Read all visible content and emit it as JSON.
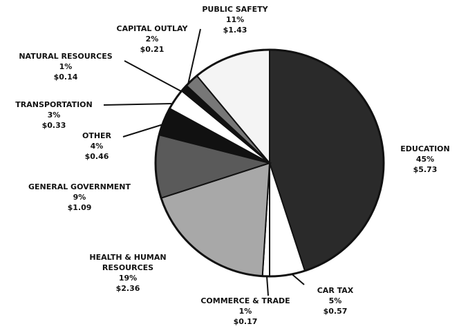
{
  "chart_data": {
    "type": "pie",
    "categories": [
      "EDUCATION",
      "CAR TAX",
      "COMMERCE & TRADE",
      "HEALTH & HUMAN RESOURCES",
      "GENERAL GOVERNMENT",
      "OTHER",
      "TRANSPORTATION",
      "NATURAL RESOURCES",
      "CAPITAL OUTLAY",
      "PUBLIC SAFETY"
    ],
    "values": [
      45,
      5,
      1,
      19,
      9,
      4,
      3,
      1,
      2,
      11
    ],
    "value_labels": [
      "45%",
      "5%",
      "1%",
      "19%",
      "9%",
      "4%",
      "3%",
      "1%",
      "2%",
      "11%"
    ],
    "amounts": [
      5.73,
      0.57,
      0.17,
      2.36,
      1.09,
      0.46,
      0.33,
      0.14,
      0.21,
      1.43
    ],
    "amount_labels": [
      "$5.73",
      "$0.57",
      "$0.17",
      "$2.36",
      "$1.09",
      "$0.46",
      "$0.33",
      "$0.14",
      "$0.21",
      "$1.43"
    ],
    "colors": [
      "#2a2a2a",
      "#ffffff",
      "#ffffff",
      "#a8a8a8",
      "#5a5a5a",
      "#111111",
      "#ffffff",
      "#111111",
      "#777777",
      "#f4f4f4"
    ]
  }
}
